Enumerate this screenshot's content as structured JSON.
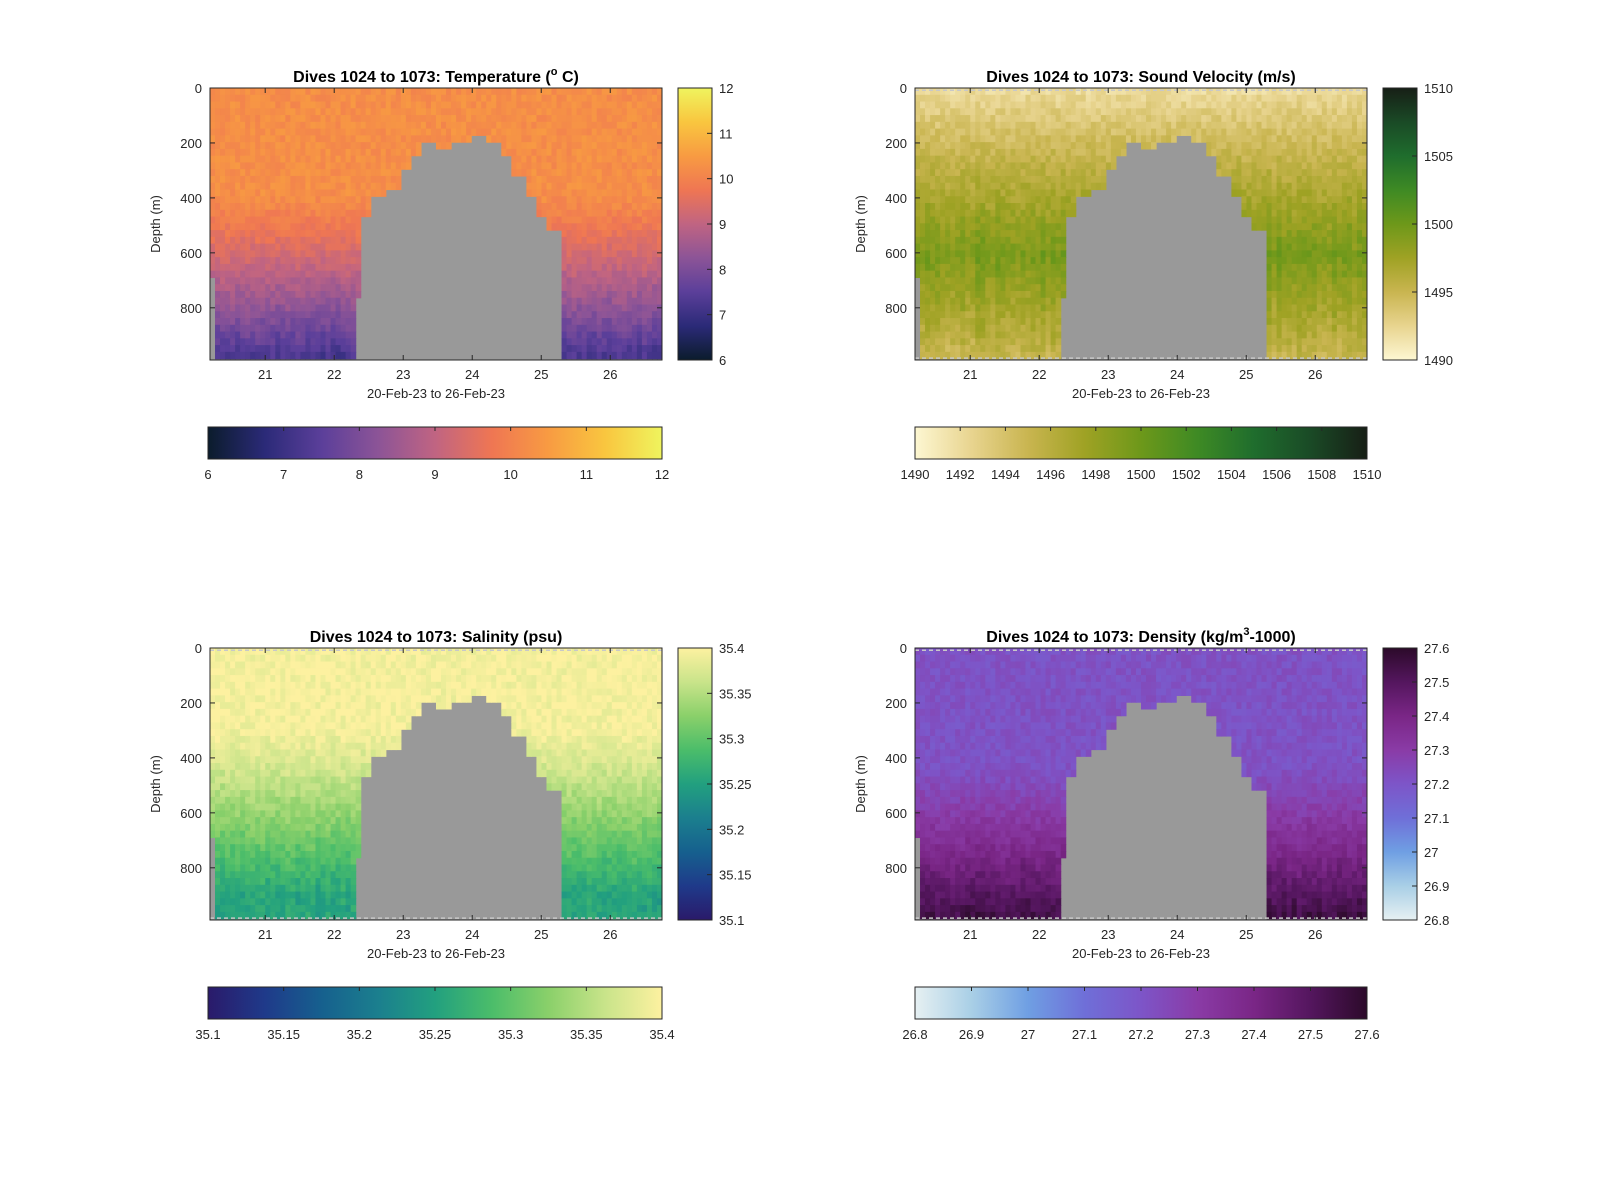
{
  "figure": {
    "background": "#ffffff",
    "nan_color": "#999999"
  },
  "chart_data": [
    {
      "type": "heatmap",
      "variable": "temperature",
      "title": "Dives 1024 to 1073: Temperature (",
      "title_sup": "o",
      "title_end": " C)",
      "xlabel": "20-Feb-23 to 26-Feb-23",
      "ylabel": "Depth (m)",
      "x_ticks": [
        21,
        22,
        23,
        24,
        25,
        26
      ],
      "xlim": [
        20.2,
        26.75
      ],
      "y_ticks": [
        0,
        200,
        400,
        600,
        800
      ],
      "ylim": [
        0,
        990
      ],
      "y_reversed": true,
      "clim": [
        6,
        12
      ],
      "colorbar_ticks": [
        "6",
        "7",
        "8",
        "9",
        "10",
        "11",
        "12"
      ],
      "horizontal_colorbar_ticks": [
        "6",
        "7",
        "8",
        "9",
        "10",
        "11",
        "12"
      ],
      "colormap": [
        "#0b1c2c",
        "#2b2a78",
        "#5b3f9a",
        "#8c5497",
        "#c06482",
        "#ef7653",
        "#f89b42",
        "#f9c63f",
        "#eff45e"
      ],
      "surface_value": 10.25,
      "deep_value": 7.2,
      "transition": [
        380,
        980
      ],
      "dashed_lines": false,
      "grid": false
    },
    {
      "type": "heatmap",
      "variable": "sound_velocity",
      "title": "Dives 1024 to 1073: Sound Velocity (m/s)",
      "xlabel": "20-Feb-23 to 26-Feb-23",
      "ylabel": "Depth (m)",
      "x_ticks": [
        21,
        22,
        23,
        24,
        25,
        26
      ],
      "xlim": [
        20.2,
        26.75
      ],
      "y_ticks": [
        0,
        200,
        400,
        600,
        800
      ],
      "ylim": [
        0,
        990
      ],
      "y_reversed": true,
      "clim": [
        1490,
        1510
      ],
      "colorbar_ticks": [
        "1490",
        "1495",
        "1500",
        "1505",
        "1510"
      ],
      "horizontal_colorbar_ticks": [
        "1490",
        "1492",
        "1494",
        "1496",
        "1498",
        "1500",
        "1502",
        "1504",
        "1506",
        "1508",
        "1510"
      ],
      "colormap": [
        "#fdf7d2",
        "#e8d48f",
        "#c9b550",
        "#9fa224",
        "#6d981a",
        "#3e8a24",
        "#1f6d2d",
        "#1a4a26",
        "#171f16"
      ],
      "surface_value": 1491.8,
      "mid_value": 1499.5,
      "deep_value": 1495.2,
      "transition": [
        120,
        620
      ],
      "dashed_lines": true,
      "grid": false
    },
    {
      "type": "heatmap",
      "variable": "salinity",
      "title": "Dives 1024 to 1073: Salinity (psu)",
      "xlabel": "20-Feb-23 to 26-Feb-23",
      "ylabel": "Depth (m)",
      "x_ticks": [
        21,
        22,
        23,
        24,
        25,
        26
      ],
      "xlim": [
        20.2,
        26.75
      ],
      "y_ticks": [
        0,
        200,
        400,
        600,
        800
      ],
      "ylim": [
        0,
        990
      ],
      "y_reversed": true,
      "clim": [
        35.1,
        35.4
      ],
      "colorbar_ticks": [
        "35.1",
        "35.15",
        "35.2",
        "35.25",
        "35.3",
        "35.35",
        "35.4"
      ],
      "horizontal_colorbar_ticks": [
        "35.1",
        "35.15",
        "35.2",
        "35.25",
        "35.3",
        "35.35",
        "35.4"
      ],
      "colormap": [
        "#2a1a6a",
        "#1f3a8a",
        "#16608e",
        "#1b7f8e",
        "#22a07f",
        "#4bbd6a",
        "#8ad06a",
        "#c9e48a",
        "#fdf1a0"
      ],
      "surface_value": 35.395,
      "deep_value": 35.255,
      "transition": [
        280,
        900
      ],
      "dashed_lines": true,
      "grid": false
    },
    {
      "type": "heatmap",
      "variable": "density",
      "title": "Dives 1024 to 1073: Density (kg/m",
      "title_sup": "3",
      "title_end": "-1000)",
      "xlabel": "20-Feb-23 to 26-Feb-23",
      "ylabel": "Depth (m)",
      "x_ticks": [
        21,
        22,
        23,
        24,
        25,
        26
      ],
      "xlim": [
        20.2,
        26.75
      ],
      "y_ticks": [
        0,
        200,
        400,
        600,
        800
      ],
      "ylim": [
        0,
        990
      ],
      "y_reversed": true,
      "clim": [
        26.8,
        27.6
      ],
      "colorbar_ticks": [
        "26.8",
        "26.9",
        "27",
        "27.1",
        "27.2",
        "27.3",
        "27.4",
        "27.5",
        "27.6"
      ],
      "horizontal_colorbar_ticks": [
        "26.8",
        "26.9",
        "27",
        "27.1",
        "27.2",
        "27.3",
        "27.4",
        "27.5",
        "27.6"
      ],
      "colormap": [
        "#e6f0f2",
        "#a9cfe6",
        "#6f9fe3",
        "#6f6fd8",
        "#7d55c8",
        "#8a3ba6",
        "#7a2686",
        "#54165e",
        "#2c0a2a"
      ],
      "surface_value": 27.21,
      "deep_value": 27.55,
      "transition": [
        420,
        980
      ],
      "dashed_lines": true,
      "grid": false
    }
  ],
  "shared": {
    "gap_profile": [
      {
        "day": 20.2,
        "depth": 990
      },
      {
        "day": 20.3,
        "depth": 680
      },
      {
        "day": 22.28,
        "depth": 745
      },
      {
        "day": 22.4,
        "depth": 460
      },
      {
        "day": 22.55,
        "depth": 370
      },
      {
        "day": 22.75,
        "depth": 350
      },
      {
        "day": 22.95,
        "depth": 290
      },
      {
        "day": 23.1,
        "depth": 230
      },
      {
        "day": 23.25,
        "depth": 185
      },
      {
        "day": 23.45,
        "depth": 205
      },
      {
        "day": 23.7,
        "depth": 185
      },
      {
        "day": 23.95,
        "depth": 172
      },
      {
        "day": 24.2,
        "depth": 195
      },
      {
        "day": 24.4,
        "depth": 235
      },
      {
        "day": 24.6,
        "depth": 310
      },
      {
        "day": 24.8,
        "depth": 390
      },
      {
        "day": 24.95,
        "depth": 460
      },
      {
        "day": 25.1,
        "depth": 500
      },
      {
        "day": 25.3,
        "depth": 745
      }
    ],
    "sensor_depth_limit": 985
  }
}
